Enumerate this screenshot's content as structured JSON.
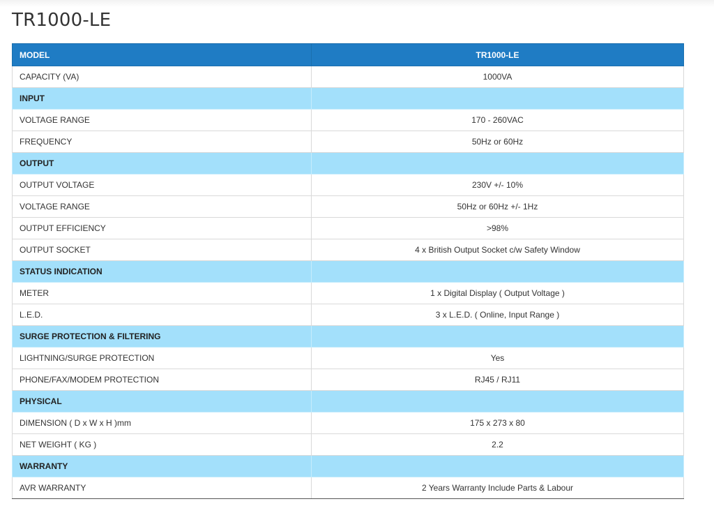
{
  "page": {
    "title": "TR1000-LE"
  },
  "table": {
    "header": {
      "label": "MODEL",
      "value": "TR1000-LE"
    },
    "rows": [
      {
        "type": "row",
        "label": "CAPACITY (VA)",
        "value": "1000VA"
      },
      {
        "type": "section",
        "label": "INPUT",
        "value": ""
      },
      {
        "type": "row",
        "label": "VOLTAGE RANGE",
        "value": "170 - 260VAC"
      },
      {
        "type": "row",
        "label": "FREQUENCY",
        "value": "50Hz or 60Hz"
      },
      {
        "type": "section",
        "label": "OUTPUT",
        "value": ""
      },
      {
        "type": "row",
        "label": "OUTPUT VOLTAGE",
        "value": "230V +/- 10%"
      },
      {
        "type": "row",
        "label": "VOLTAGE RANGE",
        "value": "50Hz or 60Hz +/- 1Hz"
      },
      {
        "type": "row",
        "label": "OUTPUT EFFICIENCY",
        "value": ">98%"
      },
      {
        "type": "row",
        "label": "OUTPUT SOCKET",
        "value": "4 x British Output Socket c/w Safety Window"
      },
      {
        "type": "section",
        "label": "STATUS INDICATION",
        "value": ""
      },
      {
        "type": "row",
        "label": "METER",
        "value": "1 x Digital Display ( Output Voltage )"
      },
      {
        "type": "row",
        "label": "L.E.D.",
        "value": "3 x L.E.D. ( Online, Input Range )"
      },
      {
        "type": "section",
        "label": "SURGE PROTECTION & FILTERING",
        "value": ""
      },
      {
        "type": "row",
        "label": "LIGHTNING/SURGE PROTECTION",
        "value": "Yes"
      },
      {
        "type": "row",
        "label": "PHONE/FAX/MODEM PROTECTION",
        "value": "RJ45 / RJ11"
      },
      {
        "type": "section",
        "label": "PHYSICAL",
        "value": ""
      },
      {
        "type": "row",
        "label": "DIMENSION ( D x W x H )mm",
        "value": "175 x 273 x 80"
      },
      {
        "type": "row",
        "label": "NET WEIGHT ( KG )",
        "value": "2.2"
      },
      {
        "type": "section",
        "label": "WARRANTY",
        "value": ""
      },
      {
        "type": "row",
        "label": "AVR WARRANTY",
        "value": "2 Years Warranty Include Parts & Labour"
      }
    ]
  },
  "colors": {
    "header_bg": "#1f7cc4",
    "section_bg": "#a3e0fb",
    "row_bg": "#ffffff"
  }
}
